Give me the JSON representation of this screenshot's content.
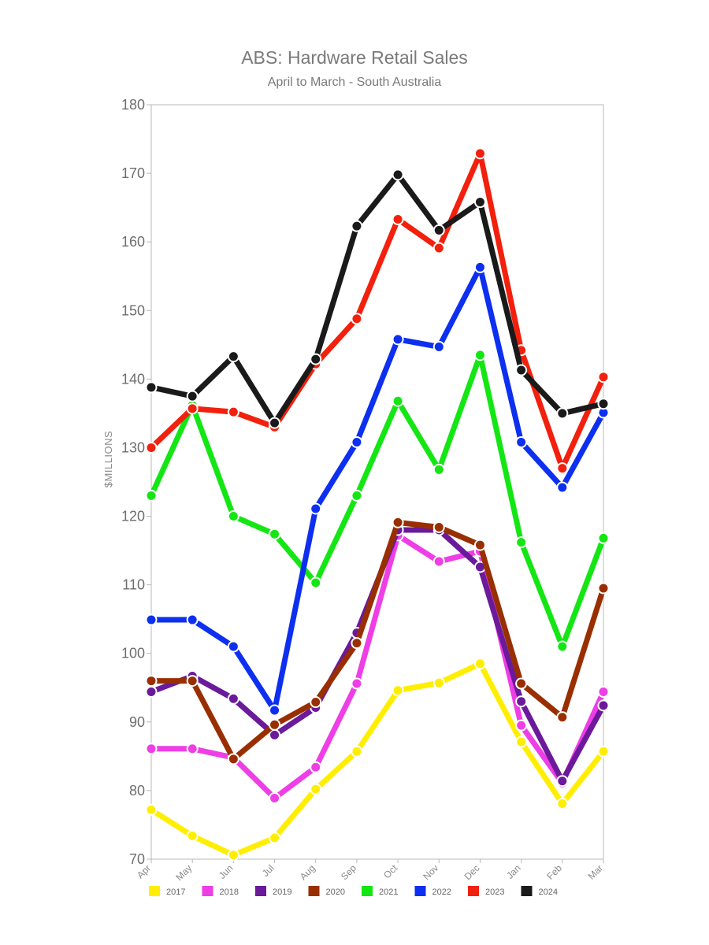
{
  "chart_data": {
    "type": "line",
    "title": "ABS: Hardware Retail Sales",
    "subtitle": "April to March - South Australia",
    "ylabel": "$MILLIONS",
    "xlabel": "",
    "ylim": [
      70,
      180
    ],
    "yticks": [
      70,
      80,
      90,
      100,
      110,
      120,
      130,
      140,
      150,
      160,
      170,
      180
    ],
    "grid": false,
    "legend_position": "bottom",
    "categories": [
      "Apr",
      "May",
      "Jun",
      "Jul",
      "Aug",
      "Sep",
      "Oct",
      "Nov",
      "Dec",
      "Jan",
      "Feb",
      "Mar"
    ],
    "series": [
      {
        "name": "2017",
        "color": "#ffee00",
        "values": [
          77.2,
          73.4,
          70.6,
          73.1,
          80.2,
          85.7,
          94.6,
          95.7,
          98.5,
          87.1,
          78.1,
          85.7
        ]
      },
      {
        "name": "2018",
        "color": "#ee3ee6",
        "values": [
          86.1,
          86.1,
          84.8,
          78.9,
          83.4,
          95.6,
          117.2,
          113.4,
          114.9,
          89.5,
          81.1,
          94.4
        ]
      },
      {
        "name": "2019",
        "color": "#6a1a9a",
        "values": [
          94.4,
          96.7,
          93.4,
          88.1,
          92.1,
          103.0,
          118.0,
          118.0,
          112.6,
          93.0,
          81.4,
          92.4
        ]
      },
      {
        "name": "2020",
        "color": "#992f00",
        "values": [
          96.0,
          96.0,
          84.6,
          89.6,
          92.9,
          101.5,
          119.1,
          118.4,
          115.8,
          95.6,
          90.7,
          109.5
        ]
      },
      {
        "name": "2021",
        "color": "#14e614",
        "values": [
          123.0,
          136.2,
          120.0,
          117.4,
          110.3,
          123.0,
          136.8,
          126.8,
          143.5,
          116.2,
          101.0,
          116.8
        ]
      },
      {
        "name": "2022",
        "color": "#0d2ff0",
        "values": [
          104.9,
          104.9,
          101.0,
          91.7,
          121.1,
          130.8,
          145.8,
          144.7,
          156.3,
          130.8,
          124.2,
          135.1
        ]
      },
      {
        "name": "2023",
        "color": "#f2200c",
        "values": [
          130.0,
          135.7,
          135.2,
          133.0,
          142.2,
          148.8,
          163.3,
          159.1,
          172.9,
          144.2,
          127.0,
          140.3
        ]
      },
      {
        "name": "2024",
        "color": "#1a1a1a",
        "values": [
          138.8,
          137.5,
          143.3,
          133.6,
          142.9,
          162.3,
          169.8,
          161.7,
          165.8,
          141.3,
          135.0,
          136.4
        ]
      }
    ]
  }
}
